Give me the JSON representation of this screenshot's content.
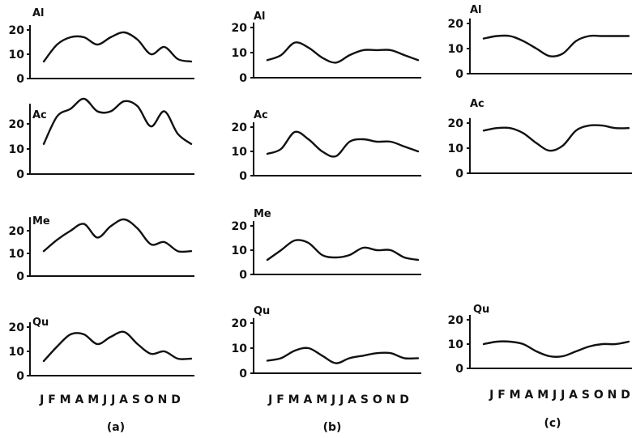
{
  "chart_data": [
    {
      "type": "line",
      "column": "(a)",
      "series_label": "Al",
      "x": [
        "J",
        "F",
        "M",
        "A",
        "M",
        "J",
        "J",
        "A",
        "S",
        "O",
        "N",
        "D"
      ],
      "yticks": [
        "0",
        "10",
        "20"
      ],
      "ylim": [
        0,
        22
      ],
      "values": [
        7,
        14,
        17,
        17,
        14,
        17,
        19,
        16,
        10,
        13,
        8,
        7
      ]
    },
    {
      "type": "line",
      "column": "(a)",
      "series_label": "Ac",
      "x": [
        "J",
        "F",
        "M",
        "A",
        "M",
        "J",
        "J",
        "A",
        "S",
        "O",
        "N",
        "D"
      ],
      "yticks": [
        "0",
        "10",
        "20"
      ],
      "ylim": [
        0,
        28
      ],
      "values": [
        12,
        23,
        26,
        30,
        25,
        25,
        29,
        27,
        19,
        25,
        16,
        12
      ]
    },
    {
      "type": "line",
      "column": "(a)",
      "series_label": "Me",
      "x": [
        "J",
        "F",
        "M",
        "A",
        "M",
        "J",
        "J",
        "A",
        "S",
        "O",
        "N",
        "D"
      ],
      "yticks": [
        "0",
        "10",
        "20"
      ],
      "ylim": [
        0,
        26
      ],
      "values": [
        11,
        16,
        20,
        23,
        17,
        22,
        25,
        21,
        14,
        15,
        11,
        11
      ]
    },
    {
      "type": "line",
      "column": "(a)",
      "series_label": "Qu",
      "x": [
        "J",
        "F",
        "M",
        "A",
        "M",
        "J",
        "J",
        "A",
        "S",
        "O",
        "N",
        "D"
      ],
      "yticks": [
        "0",
        "10",
        "20"
      ],
      "ylim": [
        0,
        22
      ],
      "values": [
        6,
        12,
        17,
        17,
        13,
        16,
        18,
        13,
        9,
        10,
        7,
        7
      ]
    },
    {
      "type": "line",
      "column": "(b)",
      "series_label": "Al",
      "x": [
        "J",
        "F",
        "M",
        "A",
        "M",
        "J",
        "J",
        "A",
        "S",
        "O",
        "N",
        "D"
      ],
      "yticks": [
        "0",
        "10",
        "20"
      ],
      "ylim": [
        0,
        22
      ],
      "values": [
        7,
        9,
        14,
        12,
        8,
        6,
        9,
        11,
        11,
        11,
        9,
        7
      ]
    },
    {
      "type": "line",
      "column": "(b)",
      "series_label": "Ac",
      "x": [
        "J",
        "F",
        "M",
        "A",
        "M",
        "J",
        "J",
        "A",
        "S",
        "O",
        "N",
        "D"
      ],
      "yticks": [
        "0",
        "10",
        "20"
      ],
      "ylim": [
        0,
        22
      ],
      "values": [
        9,
        11,
        18,
        15,
        10,
        8,
        14,
        15,
        14,
        14,
        12,
        10
      ]
    },
    {
      "type": "line",
      "column": "(b)",
      "series_label": "Me",
      "x": [
        "J",
        "F",
        "M",
        "A",
        "M",
        "J",
        "J",
        "A",
        "S",
        "O",
        "N",
        "D"
      ],
      "yticks": [
        "0",
        "10",
        "20"
      ],
      "ylim": [
        0,
        22
      ],
      "values": [
        6,
        10,
        14,
        13,
        8,
        7,
        8,
        11,
        10,
        10,
        7,
        6
      ]
    },
    {
      "type": "line",
      "column": "(b)",
      "series_label": "Qu",
      "x": [
        "J",
        "F",
        "M",
        "A",
        "M",
        "J",
        "J",
        "A",
        "S",
        "O",
        "N",
        "D"
      ],
      "yticks": [
        "0",
        "10",
        "20"
      ],
      "ylim": [
        0,
        22
      ],
      "values": [
        5,
        6,
        9,
        10,
        7,
        4,
        6,
        7,
        8,
        8,
        6,
        6
      ]
    },
    {
      "type": "line",
      "column": "(c)",
      "series_label": "Al",
      "x": [
        "J",
        "F",
        "M",
        "A",
        "M",
        "J",
        "J",
        "A",
        "S",
        "O",
        "N",
        "D"
      ],
      "yticks": [
        "0",
        "10",
        "20"
      ],
      "ylim": [
        0,
        22
      ],
      "values": [
        14,
        15,
        15,
        13,
        10,
        7,
        8,
        13,
        15,
        15,
        15,
        15
      ]
    },
    {
      "type": "line",
      "column": "(c)",
      "series_label": "Ac",
      "x": [
        "J",
        "F",
        "M",
        "A",
        "M",
        "J",
        "J",
        "A",
        "S",
        "O",
        "N",
        "D"
      ],
      "yticks": [
        "0",
        "10",
        "20"
      ],
      "ylim": [
        0,
        22
      ],
      "values": [
        17,
        18,
        18,
        16,
        12,
        9,
        11,
        17,
        19,
        19,
        18,
        18
      ]
    },
    {
      "type": "line",
      "column": "(c)",
      "series_label": "Qu",
      "x": [
        "J",
        "F",
        "M",
        "A",
        "M",
        "J",
        "J",
        "A",
        "S",
        "O",
        "N",
        "D"
      ],
      "yticks": [
        "0",
        "10",
        "20"
      ],
      "ylim": [
        0,
        22
      ],
      "values": [
        10,
        11,
        11,
        10,
        7,
        5,
        5,
        7,
        9,
        10,
        10,
        11
      ]
    }
  ],
  "month_labels": [
    "J F M A M J J A S O N D",
    "J F M A M J J A S O N D",
    "J F M A M J J A S O N D"
  ],
  "column_labels": [
    "(a)",
    "(b)",
    "(c)"
  ]
}
